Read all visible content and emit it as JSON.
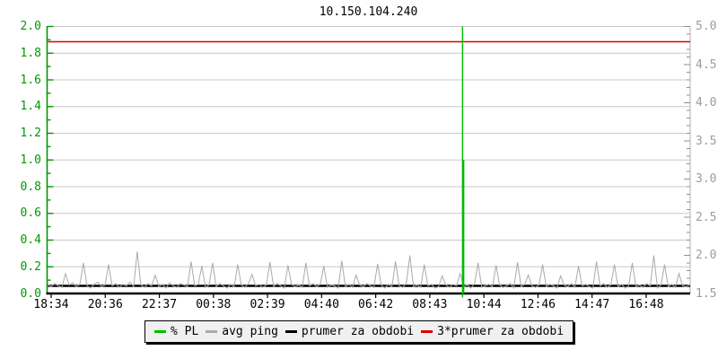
{
  "window": {
    "title": "10.150.104.240"
  },
  "colors": {
    "background": "#FFFFFF",
    "grid": "#C8C8C8",
    "plot_border_right": "#B0B0B0",
    "axis_left_green": "#009900",
    "axis_bottom_black": "#000000",
    "right_label_gray": "#9C9C9C",
    "legend_bg": "#F0F0F0",
    "legend_border": "#000000"
  },
  "chart_data": {
    "type": "line",
    "title": "10.150.104.240",
    "xlabel": "",
    "ylabel_left": "",
    "ylabel_right": "",
    "grid": true,
    "x_tick_labels": [
      "18:34",
      "20:36",
      "22:37",
      "00:38",
      "02:39",
      "04:40",
      "06:42",
      "08:43",
      "10:44",
      "12:46",
      "14:47",
      "16:48"
    ],
    "axes": {
      "left": {
        "min": 0.0,
        "max": 2.0,
        "major_step": 0.2,
        "minor_step": 0.1,
        "labels": [
          "2.0",
          "1.8",
          "1.6",
          "1.4",
          "1.2",
          "1.0",
          "0.8",
          "0.6",
          "0.4",
          "0.2",
          "0.0"
        ],
        "color": "#009900"
      },
      "right": {
        "min": 1.5,
        "max": 5.0,
        "major_step": 0.5,
        "minor_step": 0.1,
        "labels": [
          "5.0",
          "4.5",
          "4.0",
          "3.5",
          "3.0",
          "2.5",
          "2.0",
          "1.5"
        ],
        "color": "#9C9C9C"
      }
    },
    "legend": {
      "position": "bottom",
      "items": [
        {
          "label": "% PL",
          "color": "#00BB00"
        },
        {
          "label": "avg ping",
          "color": "#AAAAAA"
        },
        {
          "label": "prumer za obdobi",
          "color": "#000000"
        },
        {
          "label": "3*prumer za obdobi",
          "color": "#DD0000"
        }
      ]
    },
    "series": [
      {
        "name": "% PL",
        "axis": "left",
        "color": "#00BB00",
        "style": "spike",
        "baseline_value": 0,
        "spike": {
          "time_approx": "09:56",
          "x_frac": 0.646,
          "peak_value": 2.0,
          "clipped_at_top": true,
          "adjacent_value": 1.0
        }
      },
      {
        "name": "avg ping",
        "axis": "right",
        "color": "#AAAAAA",
        "style": "noisy-line",
        "values": [
          1.62,
          1.59,
          1.63,
          1.6,
          1.58,
          1.76,
          1.61,
          1.64,
          1.59,
          1.62,
          1.9,
          1.6,
          1.57,
          1.62,
          1.65,
          1.59,
          1.61,
          1.88,
          1.6,
          1.63,
          1.58,
          1.62,
          1.6,
          1.65,
          1.59,
          2.05,
          1.61,
          1.58,
          1.63,
          1.6,
          1.74,
          1.59,
          1.62,
          1.57,
          1.64,
          1.6,
          1.58,
          1.63,
          1.61,
          1.59,
          1.92,
          1.6,
          1.62,
          1.86,
          1.58,
          1.61,
          1.9,
          1.59,
          1.63,
          1.6,
          1.57,
          1.62,
          1.59,
          1.88,
          1.61,
          1.58,
          1.63,
          1.75,
          1.6,
          1.62,
          1.58,
          1.61,
          1.91,
          1.59,
          1.63,
          1.6,
          1.57,
          1.87,
          1.62,
          1.59,
          1.61,
          1.58,
          1.9,
          1.6,
          1.63,
          1.59,
          1.62,
          1.86,
          1.58,
          1.61,
          1.6,
          1.57,
          1.93,
          1.59,
          1.62,
          1.58,
          1.74,
          1.61,
          1.59,
          1.63,
          1.6,
          1.58,
          1.89,
          1.61,
          1.57,
          1.62,
          1.59,
          1.92,
          1.6,
          1.58,
          1.63,
          2.0,
          1.59,
          1.61,
          1.58,
          1.88,
          1.6,
          1.62,
          1.57,
          1.59,
          1.73,
          1.61,
          1.58,
          1.62,
          1.6,
          1.76,
          1.59,
          1.61,
          1.57,
          1.63,
          1.9,
          1.58,
          1.6,
          1.62,
          1.59,
          1.87,
          1.61,
          1.58,
          1.6,
          1.63,
          1.57,
          1.91,
          1.59,
          1.62,
          1.74,
          1.6,
          1.58,
          1.61,
          1.88,
          1.59,
          1.62,
          1.6,
          1.57,
          1.73,
          1.61,
          1.59,
          1.63,
          1.58,
          1.86,
          1.6,
          1.62,
          1.59,
          1.57,
          1.92,
          1.6,
          1.63,
          1.58,
          1.61,
          1.88,
          1.59,
          1.62,
          1.57,
          1.6,
          1.9,
          1.59,
          1.61,
          1.58,
          1.63,
          1.6,
          2.0,
          1.57,
          1.61,
          1.88,
          1.59,
          1.62,
          1.58,
          1.76,
          1.6,
          1.59,
          1.61
        ]
      },
      {
        "name": "prumer za obdobi",
        "axis": "right",
        "color": "#000000",
        "style": "hline",
        "constant_value": 1.6
      },
      {
        "name": "3*prumer za obdobi",
        "axis": "right",
        "color": "#DD0000",
        "style": "hline",
        "constant_value": 4.8
      }
    ]
  }
}
